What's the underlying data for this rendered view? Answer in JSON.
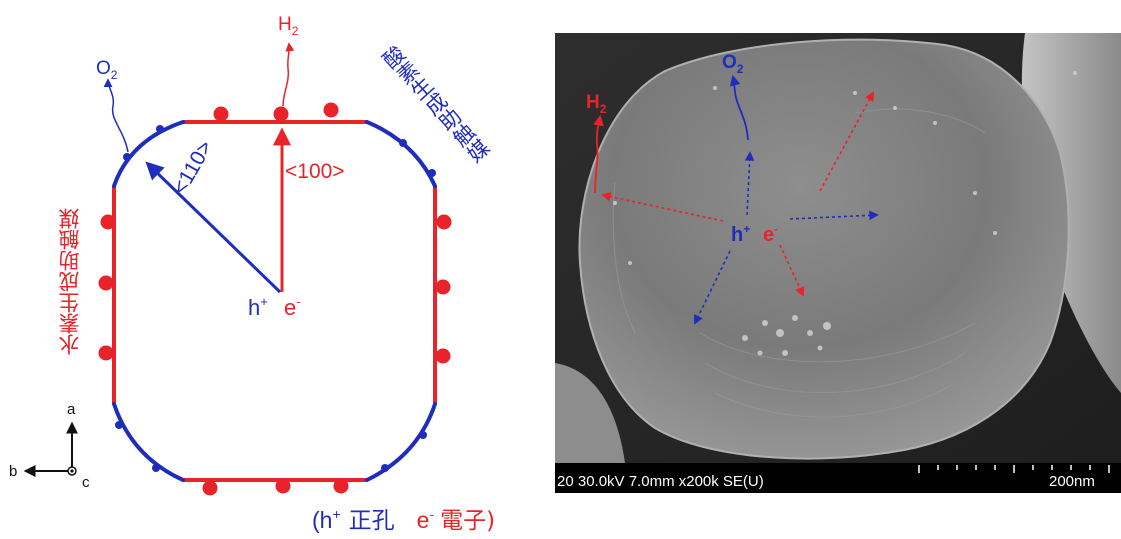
{
  "left_diagram": {
    "o2": {
      "main": "O",
      "sub": "2"
    },
    "h2": {
      "main": "H",
      "sub": "2"
    },
    "dir_110": "<110>",
    "dir_100": "<100>",
    "hole": {
      "main": "h",
      "sup": "+"
    },
    "electron": {
      "main": "e",
      "sup": "-"
    },
    "oxygen_cocatalyst": "酸素生成助触媒",
    "hydrogen_cocatalyst": "水素生成助触媒",
    "axes": {
      "a": "a",
      "b": "b",
      "c": "c"
    },
    "legend": {
      "open": "(",
      "hole_main": "h",
      "hole_sup": "+",
      "hole_text": "正孔",
      "electron_main": "e",
      "electron_sup": "-",
      "electron_text": "電子)"
    },
    "colors": {
      "blue": "#1f2dbd",
      "red": "#e8232a",
      "black": "#111111"
    }
  },
  "sem_image": {
    "o2": {
      "main": "O",
      "sub": "2"
    },
    "h2": {
      "main": "H",
      "sub": "2"
    },
    "hole": {
      "main": "h",
      "sup": "+"
    },
    "electron": {
      "main": "e",
      "sup": "-"
    },
    "info_bar": "20 30.0kV 7.0mm x200k SE(U)",
    "scale_label": "200nm"
  }
}
